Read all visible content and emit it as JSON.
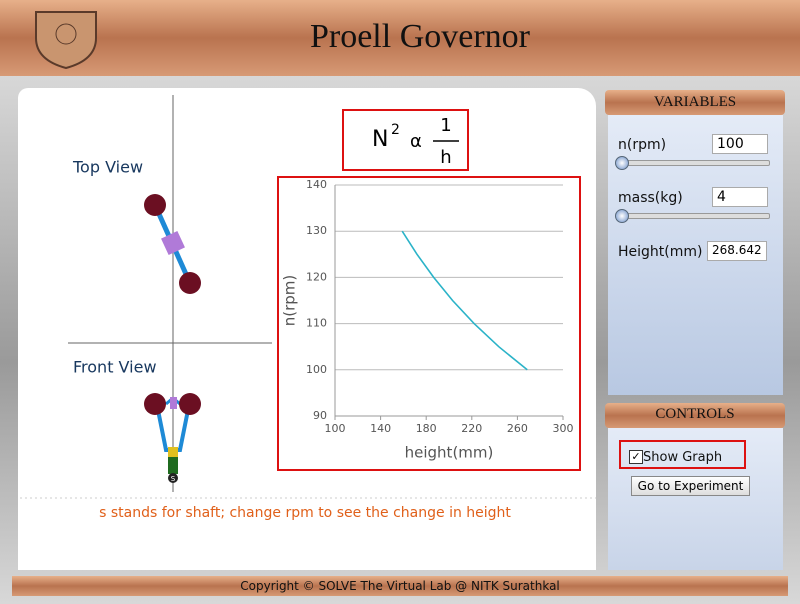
{
  "header": {
    "title": "Proell Governor"
  },
  "diagram": {
    "top_view": "Top View",
    "front_view": "Front View",
    "shaft": "S"
  },
  "formula": {
    "lhs": "N",
    "power": "2",
    "relation": "α",
    "numerator": "1",
    "denominator": "h"
  },
  "chart_data": {
    "type": "line",
    "x_label": "height(mm)",
    "y_label": "n(rpm)",
    "x": [
      158.96,
      171.93,
      186.56,
      203.13,
      222.02,
      243.67,
      268.642
    ],
    "values": [
      130,
      125,
      120,
      115,
      110,
      105,
      100
    ],
    "color": "#2bb3c8",
    "xlim": [
      100,
      300
    ],
    "xticks": [
      100,
      140,
      180,
      220,
      260,
      300
    ],
    "ylim": [
      90,
      140
    ],
    "yticks": [
      90,
      100,
      110,
      120,
      130,
      140
    ],
    "grid": true
  },
  "note": "s stands for shaft; change rpm to see the change in height",
  "variables": {
    "title": "VARIABLES",
    "rpm_label": "n(rpm)",
    "rpm": 100,
    "mass_label": "mass(kg)",
    "mass": 4,
    "height_label": "Height(mm)",
    "height": 268.642
  },
  "controls": {
    "title": "CONTROLS",
    "show_graph": "Show Graph",
    "go": "Go to Experiment"
  },
  "footer": "Copyright © SOLVE The Virtual Lab @ NITK Surathkal"
}
